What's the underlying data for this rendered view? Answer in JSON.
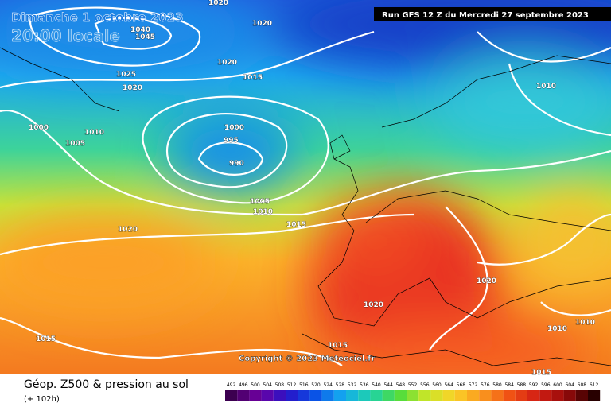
{
  "header": {
    "date": "Dimanche 1 octobre 2023",
    "time": "20:00 locale",
    "run": "Run GFS 12 Z du Mercredi 27 septembre 2023"
  },
  "isobar_labels": [
    "1020",
    "1020",
    "1045",
    "1040",
    "1025",
    "1020",
    "1020",
    "1015",
    "1000",
    "1010",
    "1005",
    "1000",
    "995",
    "990",
    "1005",
    "1010",
    "1015",
    "1020",
    "1010",
    "1020",
    "1020",
    "1015",
    "1015",
    "1010",
    "1010",
    "1015"
  ],
  "copyright": "Copyright © 2023 Meteociel.fr",
  "footer": {
    "title": "Géop. Z500 & pression au sol",
    "lead": "(+ 102h)"
  },
  "legend": [
    492,
    496,
    500,
    504,
    508,
    512,
    516,
    520,
    524,
    528,
    532,
    536,
    540,
    544,
    548,
    552,
    556,
    560,
    564,
    568,
    572,
    576,
    580,
    584,
    588,
    592,
    596,
    600,
    604,
    608,
    612
  ]
}
